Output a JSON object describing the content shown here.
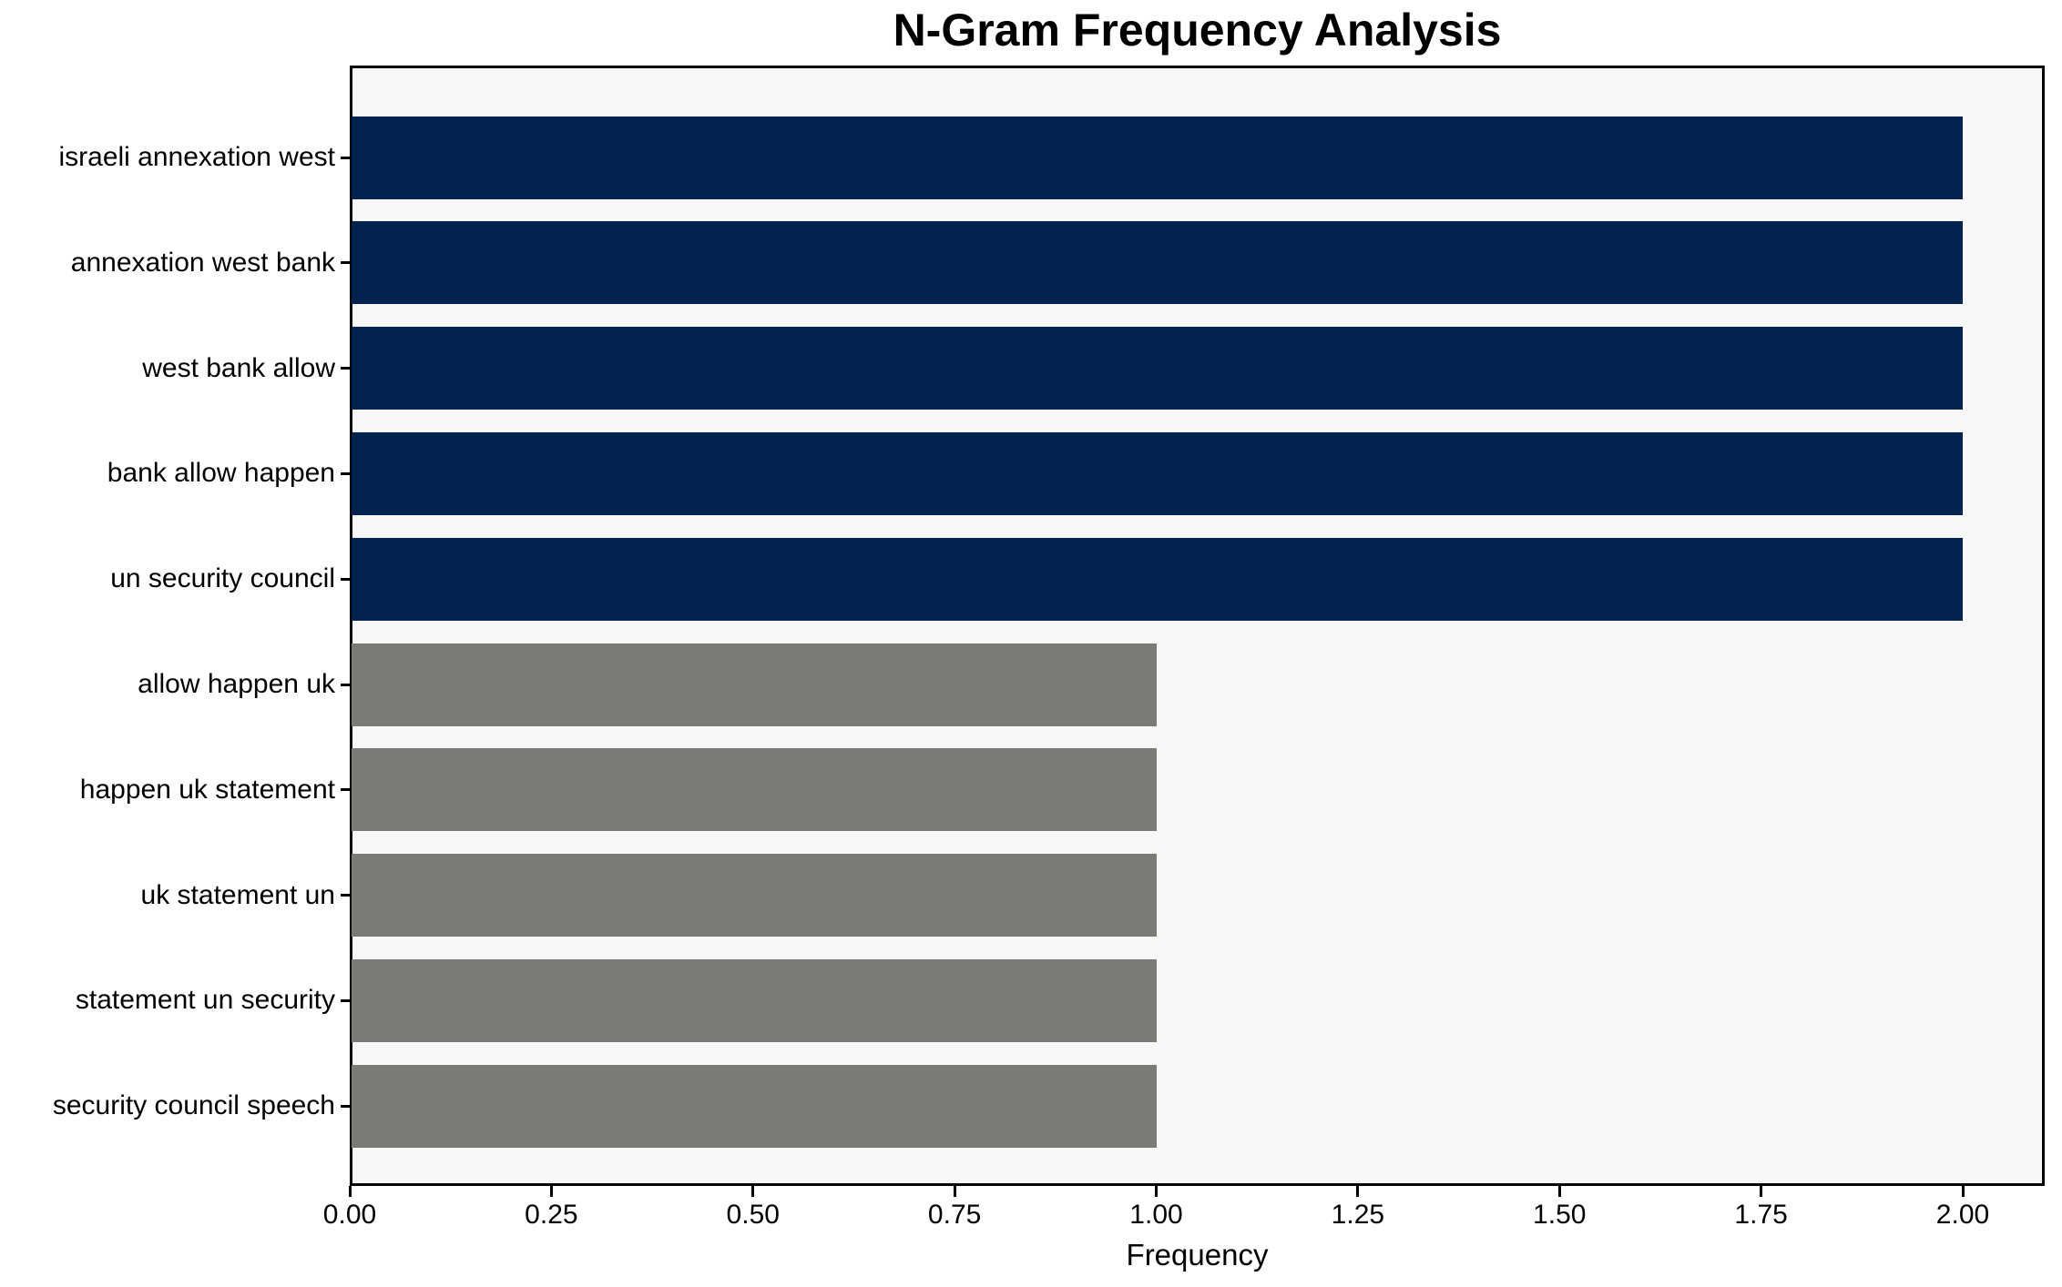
{
  "chart_data": {
    "type": "bar",
    "orientation": "horizontal",
    "title": "N-Gram Frequency Analysis",
    "xlabel": "Frequency",
    "ylabel": "",
    "categories": [
      "israeli annexation west",
      "annexation west bank",
      "west bank allow",
      "bank allow happen",
      "un security council",
      "allow happen uk",
      "happen uk statement",
      "uk statement un",
      "statement un security",
      "security council speech"
    ],
    "values": [
      2,
      2,
      2,
      2,
      2,
      1,
      1,
      1,
      1,
      1
    ],
    "bar_colors": [
      "#022350",
      "#022350",
      "#022350",
      "#022350",
      "#022350",
      "#7a7a77",
      "#7a7a77",
      "#7a7a77",
      "#7a7a77",
      "#7a7a77"
    ],
    "x_tick_values": [
      0,
      0.25,
      0.5,
      0.75,
      1.0,
      1.25,
      1.5,
      1.75,
      2.0
    ],
    "x_tick_labels": [
      "0.00",
      "0.25",
      "0.50",
      "0.75",
      "1.00",
      "1.25",
      "1.50",
      "1.75",
      "2.00"
    ],
    "xlim": [
      0,
      2.1
    ],
    "grid": false,
    "legend": null,
    "colors": {
      "highlight_bar": "#022350",
      "muted_bar": "#7a7a77",
      "plot_background": "#f7f7f7",
      "figure_background": "#ffffff",
      "spine": "#000000",
      "text": "#000000"
    }
  }
}
